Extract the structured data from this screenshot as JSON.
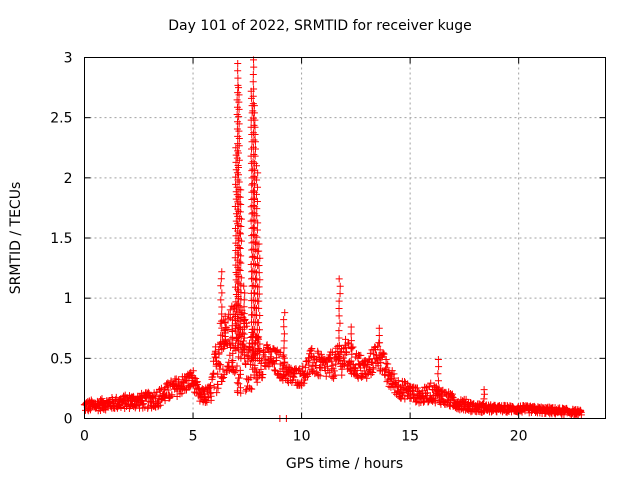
{
  "chart_data": {
    "type": "scatter",
    "title": "Day 101 of 2022, SRMTID for receiver kuge",
    "xlabel": "GPS time / hours",
    "ylabel": "SRMTID / TECUs",
    "xlim": [
      0,
      24
    ],
    "ylim": [
      0,
      3
    ],
    "xticks": [
      0,
      5,
      10,
      15,
      20
    ],
    "xtick_labels": [
      "0",
      "5",
      "10",
      "15",
      "20"
    ],
    "yticks": [
      0,
      0.5,
      1,
      1.5,
      2,
      2.5,
      3
    ],
    "ytick_labels": [
      "0",
      "0.5",
      "1",
      "1.5",
      "2",
      "2.5",
      "3"
    ],
    "grid": true,
    "marker": "+",
    "color": "#ff0000",
    "envelope_note": "approximate per-time baseline and spread of the dense scatter (hours, TECU)",
    "series": [
      {
        "name": "SRMTID",
        "envelope": [
          {
            "x": 0.0,
            "base": 0.1,
            "spread": 0.05
          },
          {
            "x": 1.0,
            "base": 0.12,
            "spread": 0.05
          },
          {
            "x": 2.0,
            "base": 0.14,
            "spread": 0.06
          },
          {
            "x": 3.0,
            "base": 0.15,
            "spread": 0.07
          },
          {
            "x": 3.5,
            "base": 0.18,
            "spread": 0.08
          },
          {
            "x": 4.0,
            "base": 0.24,
            "spread": 0.08
          },
          {
            "x": 4.5,
            "base": 0.28,
            "spread": 0.08
          },
          {
            "x": 5.0,
            "base": 0.33,
            "spread": 0.08
          },
          {
            "x": 5.3,
            "base": 0.18,
            "spread": 0.06
          },
          {
            "x": 5.8,
            "base": 0.2,
            "spread": 0.08
          },
          {
            "x": 6.2,
            "base": 0.55,
            "spread": 0.3
          },
          {
            "x": 6.6,
            "base": 0.65,
            "spread": 0.25
          },
          {
            "x": 7.0,
            "base": 0.6,
            "spread": 0.4
          },
          {
            "x": 7.5,
            "base": 0.5,
            "spread": 0.3
          },
          {
            "x": 8.0,
            "base": 0.5,
            "spread": 0.2
          },
          {
            "x": 8.5,
            "base": 0.5,
            "spread": 0.1
          },
          {
            "x": 9.0,
            "base": 0.45,
            "spread": 0.12
          },
          {
            "x": 9.5,
            "base": 0.35,
            "spread": 0.08
          },
          {
            "x": 10.0,
            "base": 0.35,
            "spread": 0.08
          },
          {
            "x": 10.5,
            "base": 0.48,
            "spread": 0.12
          },
          {
            "x": 11.0,
            "base": 0.42,
            "spread": 0.1
          },
          {
            "x": 11.5,
            "base": 0.45,
            "spread": 0.12
          },
          {
            "x": 12.0,
            "base": 0.52,
            "spread": 0.15
          },
          {
            "x": 12.5,
            "base": 0.45,
            "spread": 0.12
          },
          {
            "x": 13.0,
            "base": 0.4,
            "spread": 0.1
          },
          {
            "x": 13.5,
            "base": 0.55,
            "spread": 0.12
          },
          {
            "x": 14.0,
            "base": 0.35,
            "spread": 0.1
          },
          {
            "x": 14.5,
            "base": 0.25,
            "spread": 0.08
          },
          {
            "x": 15.0,
            "base": 0.22,
            "spread": 0.07
          },
          {
            "x": 15.5,
            "base": 0.18,
            "spread": 0.06
          },
          {
            "x": 16.0,
            "base": 0.22,
            "spread": 0.08
          },
          {
            "x": 16.5,
            "base": 0.18,
            "spread": 0.07
          },
          {
            "x": 17.0,
            "base": 0.14,
            "spread": 0.06
          },
          {
            "x": 18.0,
            "base": 0.09,
            "spread": 0.04
          },
          {
            "x": 19.0,
            "base": 0.08,
            "spread": 0.03
          },
          {
            "x": 20.0,
            "base": 0.08,
            "spread": 0.03
          },
          {
            "x": 21.0,
            "base": 0.07,
            "spread": 0.03
          },
          {
            "x": 22.0,
            "base": 0.06,
            "spread": 0.03
          },
          {
            "x": 22.9,
            "base": 0.05,
            "spread": 0.02
          }
        ],
        "peaks": [
          {
            "x": 6.3,
            "y": 1.22
          },
          {
            "x": 6.5,
            "y": 0.85
          },
          {
            "x": 6.8,
            "y": 0.82
          },
          {
            "x": 6.97,
            "y": 2.25
          },
          {
            "x": 7.05,
            "y": 2.95
          },
          {
            "x": 7.12,
            "y": 2.75
          },
          {
            "x": 7.2,
            "y": 1.9
          },
          {
            "x": 7.35,
            "y": 1.1
          },
          {
            "x": 7.7,
            "y": 2.72
          },
          {
            "x": 7.78,
            "y": 2.98
          },
          {
            "x": 7.85,
            "y": 2.6
          },
          {
            "x": 7.95,
            "y": 2.1
          },
          {
            "x": 8.05,
            "y": 1.45
          },
          {
            "x": 9.2,
            "y": 0.88
          },
          {
            "x": 11.75,
            "y": 1.16
          },
          {
            "x": 12.3,
            "y": 0.76
          },
          {
            "x": 13.6,
            "y": 0.75
          },
          {
            "x": 16.3,
            "y": 0.49
          },
          {
            "x": 18.4,
            "y": 0.24
          }
        ],
        "zero_points": [
          {
            "x": 9.0,
            "y": 0.0
          },
          {
            "x": 9.3,
            "y": 0.0
          }
        ]
      }
    ]
  }
}
